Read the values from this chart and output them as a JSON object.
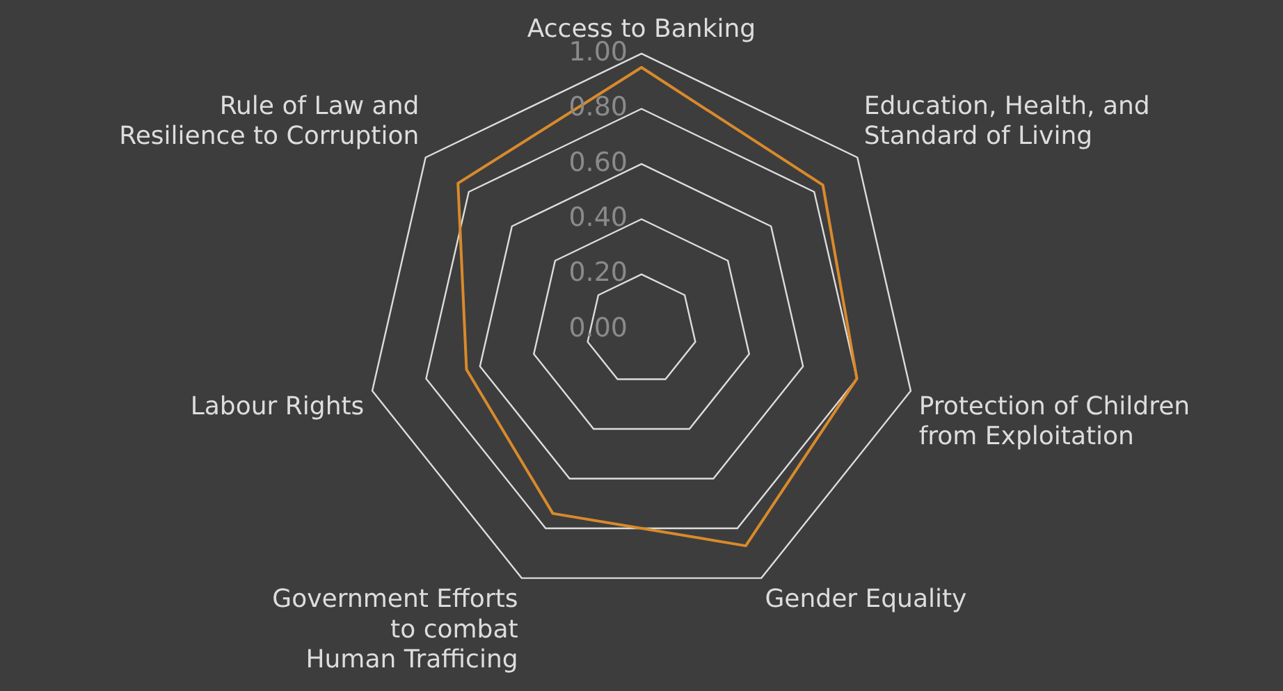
{
  "chart_data": {
    "type": "radar",
    "categories": [
      "Access to Banking",
      "Education, Health, and\nStandard of Living",
      "Protection of Children\nfrom Exploitation",
      "Gender Equality",
      "Government Efforts\nto combat\nHuman Trafficing",
      "Labour Rights",
      "Rule of Law and\nResilience to Corruption"
    ],
    "series": [
      {
        "color": "#d98a2b",
        "values": [
          0.95,
          0.84,
          0.8,
          0.87,
          0.74,
          0.65,
          0.85
        ]
      }
    ],
    "ylim": [
      0,
      1
    ],
    "yticks": [
      {
        "value": 0,
        "label": "0.00"
      },
      {
        "value": 0.2,
        "label": "0.20"
      },
      {
        "value": 0.4,
        "label": "0.40"
      },
      {
        "value": 0.6,
        "label": "0.60"
      },
      {
        "value": 0.8,
        "label": "0.80"
      },
      {
        "value": 1,
        "label": "1.00"
      }
    ],
    "grid": true,
    "legend": false,
    "marker": "none"
  }
}
